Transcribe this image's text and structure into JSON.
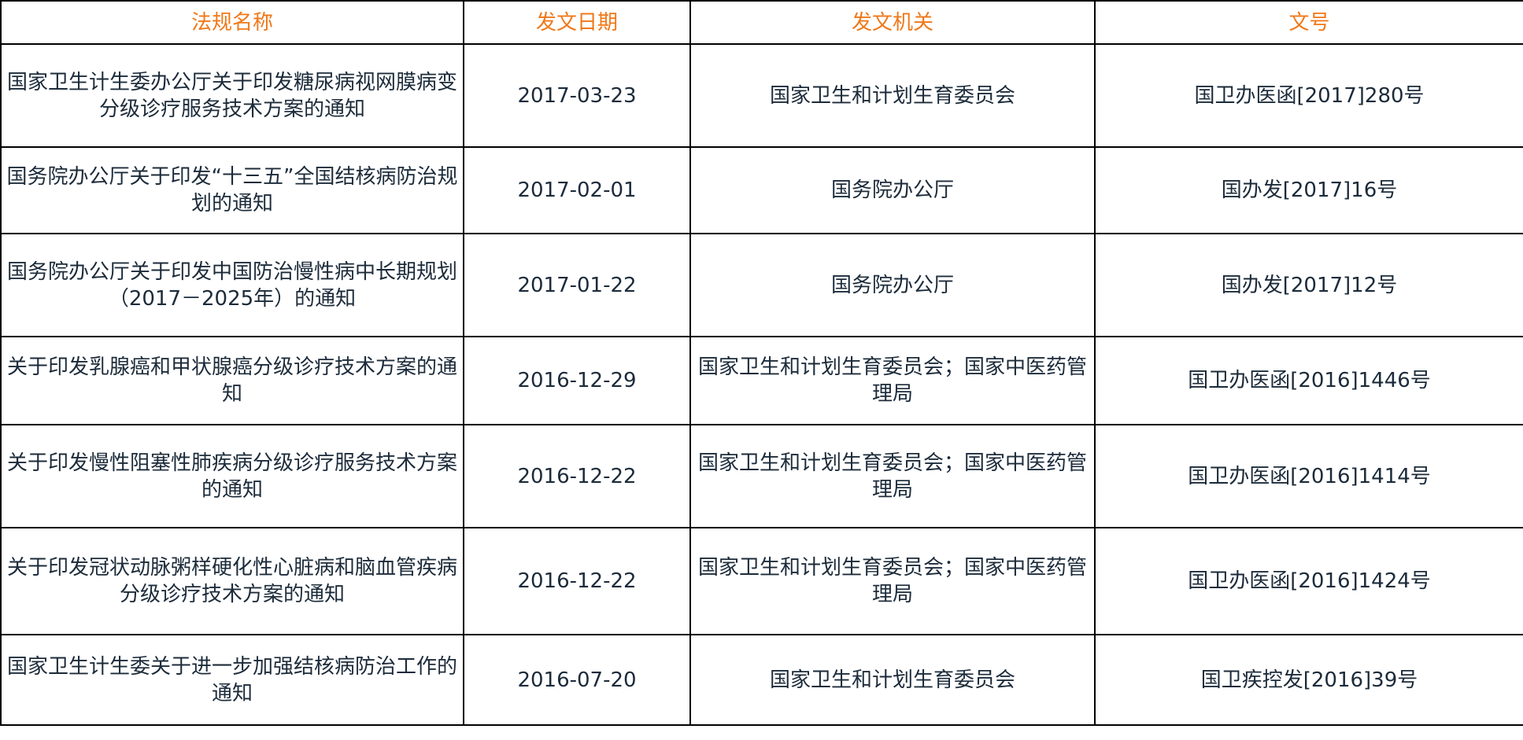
{
  "table": {
    "header": [
      "法规名称",
      "发文日期",
      "发文机关",
      "文号"
    ],
    "rows": [
      [
        "国家卫生计生委办公厅关于印发糖尿病视网膜病变分级诊疗服务技术方案的通知",
        "2017-03-23",
        "国家卫生和计划生育委员会",
        "国卫办医函[2017]280号"
      ],
      [
        "国务院办公厅关于印发“十三五”全国结核病防治规划的通知",
        "2017-02-01",
        "国务院办公厅",
        "国办发[2017]16号"
      ],
      [
        "国务院办公厅关于印发中国防治慢性病中长期规划（2017－2025年）的通知",
        "2017-01-22",
        "国务院办公厅",
        "国办发[2017]12号"
      ],
      [
        "关于印发乳腺癌和甲状腺癌分级诊疗技术方案的通知",
        "2016-12-29",
        "国家卫生和计划生育委员会；国家中医药管理局",
        "国卫办医函[2016]1446号"
      ],
      [
        "关于印发慢性阻塞性肺疾病分级诊疗服务技术方案的通知",
        "2016-12-22",
        "国家卫生和计划生育委员会；国家中医药管理局",
        "国卫办医函[2016]1414号"
      ],
      [
        "关于印发冠状动脉粥样硬化性心脏病和脑血管疾病分级诊疗技术方案的通知",
        "2016-12-22",
        "国家卫生和计划生育委员会；国家中医药管理局",
        "国卫办医函[2016]1424号"
      ],
      [
        "国家卫生计生委关于进一步加强结核病防治工作的通知",
        "2016-07-20",
        "国家卫生和计划生育委员会",
        "国卫疾控发[2016]39号"
      ]
    ]
  }
}
